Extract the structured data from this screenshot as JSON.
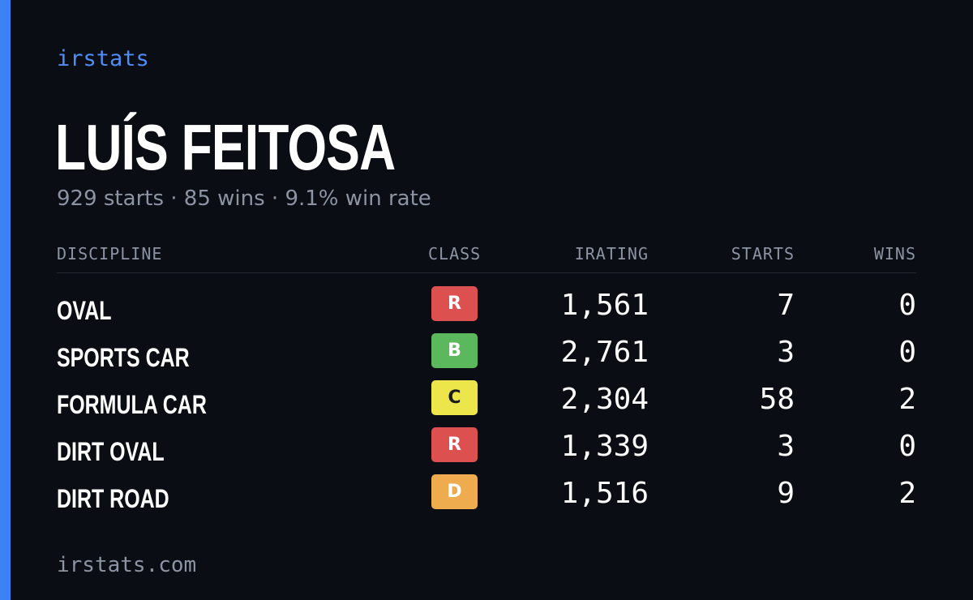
{
  "brand": "irstats",
  "player": {
    "name": "LUÍS FEITOSA",
    "summary": "929 starts · 85 wins · 9.1% win rate"
  },
  "table": {
    "headers": {
      "discipline": "DISCIPLINE",
      "class": "CLASS",
      "irating": "IRATING",
      "starts": "STARTS",
      "wins": "WINS"
    },
    "rows": [
      {
        "discipline": "OVAL",
        "class": "R",
        "irating": "1,561",
        "starts": "7",
        "wins": "0"
      },
      {
        "discipline": "SPORTS CAR",
        "class": "B",
        "irating": "2,761",
        "starts": "3",
        "wins": "0"
      },
      {
        "discipline": "FORMULA CAR",
        "class": "C",
        "irating": "2,304",
        "starts": "58",
        "wins": "2"
      },
      {
        "discipline": "DIRT OVAL",
        "class": "R",
        "irating": "1,339",
        "starts": "3",
        "wins": "0"
      },
      {
        "discipline": "DIRT ROAD",
        "class": "D",
        "irating": "1,516",
        "starts": "9",
        "wins": "2"
      }
    ]
  },
  "class_colors": {
    "R": "#dd5050",
    "B": "#5cb85c",
    "C": "#ece64a",
    "D": "#eeac4e"
  },
  "accent_color": "#3b82f6",
  "footer": "irstats.com"
}
